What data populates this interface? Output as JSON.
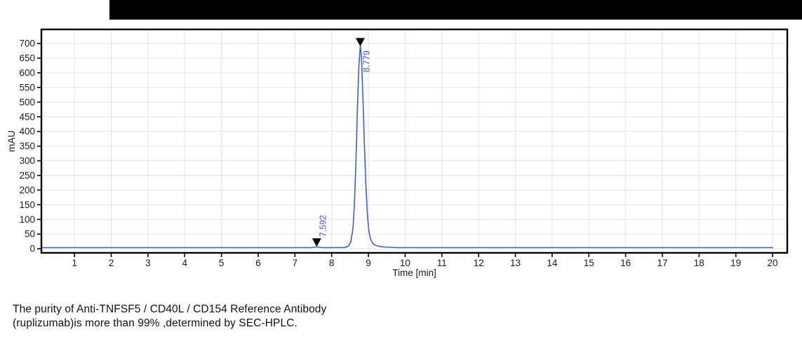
{
  "topbar": {
    "color": "#000000"
  },
  "chart_data": {
    "type": "line",
    "title": "",
    "xlabel": "Time [min]",
    "ylabel": "mAU",
    "xlim": [
      0.1,
      20.4
    ],
    "ylim": [
      -14,
      748
    ],
    "x_ticks": [
      1,
      2,
      3,
      4,
      5,
      6,
      7,
      8,
      9,
      10,
      11,
      12,
      13,
      14,
      15,
      16,
      17,
      18,
      19,
      20
    ],
    "y_ticks": [
      0,
      50,
      100,
      150,
      200,
      250,
      300,
      350,
      400,
      450,
      500,
      550,
      600,
      650,
      700
    ],
    "grid": true,
    "legend": "none",
    "line_color": "#3f5fd0",
    "grid_color": "#e3e3ea",
    "frame_color": "#000000",
    "tick_label_color": "#1a1a1a",
    "annotation_color": "#3f5fd0",
    "marker_color": "#0a0a0a",
    "series": [
      {
        "name": "UV signal",
        "points": [
          [
            0.1,
            4
          ],
          [
            1,
            4
          ],
          [
            2,
            4
          ],
          [
            3,
            4
          ],
          [
            4,
            4
          ],
          [
            5,
            4
          ],
          [
            6,
            4
          ],
          [
            7,
            4
          ],
          [
            7.45,
            4
          ],
          [
            7.55,
            5.5
          ],
          [
            7.592,
            6.5
          ],
          [
            7.65,
            5.5
          ],
          [
            7.75,
            4
          ],
          [
            8.0,
            4
          ],
          [
            8.35,
            4.5
          ],
          [
            8.45,
            8
          ],
          [
            8.52,
            22
          ],
          [
            8.58,
            70
          ],
          [
            8.62,
            150
          ],
          [
            8.66,
            290
          ],
          [
            8.7,
            470
          ],
          [
            8.74,
            620
          ],
          [
            8.779,
            693
          ],
          [
            8.81,
            655
          ],
          [
            8.85,
            520
          ],
          [
            8.89,
            360
          ],
          [
            8.93,
            220
          ],
          [
            8.97,
            120
          ],
          [
            9.01,
            62
          ],
          [
            9.06,
            32
          ],
          [
            9.12,
            18
          ],
          [
            9.2,
            11
          ],
          [
            9.35,
            7
          ],
          [
            9.55,
            5
          ],
          [
            9.8,
            4
          ],
          [
            10,
            4
          ],
          [
            11,
            4
          ],
          [
            12,
            4
          ],
          [
            13,
            4
          ],
          [
            14,
            4
          ],
          [
            15,
            4
          ],
          [
            16,
            4
          ],
          [
            17,
            4
          ],
          [
            18,
            4
          ],
          [
            19,
            4
          ],
          [
            20,
            4
          ]
        ]
      }
    ],
    "annotations": [
      {
        "label": "7.592",
        "time": 7.592,
        "marker_value": 7,
        "label_offset": [
          13,
          -14
        ]
      },
      {
        "label": "8.779",
        "time": 8.779,
        "marker_value": 690,
        "label_offset": [
          13,
          37
        ]
      }
    ]
  },
  "caption": {
    "line1": "The purity of Anti-TNFSF5 / CD40L / CD154 Reference Antibody",
    "line2": "(ruplizumab)is more than 99% ,determined by SEC-HPLC."
  }
}
